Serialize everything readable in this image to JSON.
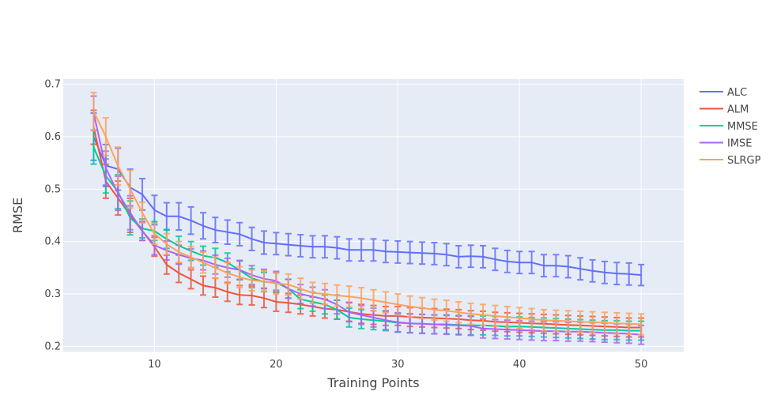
{
  "chart_data": {
    "type": "line",
    "xlabel": "Training Points",
    "ylabel": "RMSE",
    "x": [
      5,
      6,
      7,
      8,
      9,
      10,
      11,
      12,
      13,
      14,
      15,
      16,
      17,
      18,
      19,
      20,
      21,
      22,
      23,
      24,
      25,
      26,
      27,
      28,
      29,
      30,
      31,
      32,
      33,
      34,
      35,
      36,
      37,
      38,
      39,
      40,
      41,
      42,
      43,
      44,
      45,
      46,
      47,
      48,
      49,
      50
    ],
    "xlim": [
      2.5,
      53.5
    ],
    "ylim": [
      0.19,
      0.71
    ],
    "x_ticks": [
      10,
      20,
      30,
      40,
      50
    ],
    "y_ticks": [
      0.2,
      0.3,
      0.4,
      0.5,
      0.6,
      0.7
    ],
    "grid": true,
    "legend_position": "top-right",
    "error_bars": true,
    "series": [
      {
        "name": "ALC",
        "color": "#636efa",
        "values": [
          0.6,
          0.545,
          0.538,
          0.503,
          0.49,
          0.46,
          0.448,
          0.448,
          0.44,
          0.43,
          0.422,
          0.418,
          0.414,
          0.405,
          0.398,
          0.396,
          0.394,
          0.392,
          0.39,
          0.39,
          0.388,
          0.384,
          0.384,
          0.384,
          0.381,
          0.38,
          0.379,
          0.378,
          0.377,
          0.375,
          0.371,
          0.372,
          0.371,
          0.366,
          0.362,
          0.36,
          0.36,
          0.354,
          0.354,
          0.352,
          0.348,
          0.344,
          0.341,
          0.339,
          0.338,
          0.336
        ],
        "errors": [
          0.045,
          0.04,
          0.04,
          0.035,
          0.03,
          0.028,
          0.026,
          0.026,
          0.026,
          0.025,
          0.024,
          0.023,
          0.022,
          0.022,
          0.022,
          0.021,
          0.021,
          0.021,
          0.021,
          0.021,
          0.021,
          0.021,
          0.021,
          0.021,
          0.021,
          0.021,
          0.021,
          0.021,
          0.021,
          0.021,
          0.021,
          0.021,
          0.021,
          0.021,
          0.021,
          0.021,
          0.021,
          0.021,
          0.021,
          0.021,
          0.021,
          0.021,
          0.021,
          0.021,
          0.021,
          0.02
        ]
      },
      {
        "name": "ALM",
        "color": "#ef553b",
        "values": [
          0.618,
          0.515,
          0.483,
          0.45,
          0.42,
          0.39,
          0.356,
          0.34,
          0.328,
          0.316,
          0.312,
          0.304,
          0.298,
          0.297,
          0.292,
          0.285,
          0.283,
          0.28,
          0.276,
          0.272,
          0.27,
          0.266,
          0.262,
          0.26,
          0.258,
          0.258,
          0.256,
          0.255,
          0.254,
          0.253,
          0.252,
          0.25,
          0.249,
          0.247,
          0.246,
          0.245,
          0.244,
          0.243,
          0.242,
          0.241,
          0.24,
          0.239,
          0.238,
          0.237,
          0.236,
          0.236
        ]
      },
      {
        "name": "MMSE",
        "color": "#00cc96",
        "values": [
          0.58,
          0.525,
          0.495,
          0.445,
          0.425,
          0.42,
          0.405,
          0.392,
          0.382,
          0.373,
          0.369,
          0.36,
          0.345,
          0.33,
          0.323,
          0.322,
          0.31,
          0.29,
          0.285,
          0.28,
          0.27,
          0.255,
          0.252,
          0.25,
          0.248,
          0.245,
          0.244,
          0.243,
          0.242,
          0.242,
          0.241,
          0.24,
          0.24,
          0.239,
          0.238,
          0.238,
          0.237,
          0.236,
          0.235,
          0.234,
          0.233,
          0.232,
          0.231,
          0.231,
          0.23,
          0.23
        ]
      },
      {
        "name": "IMSE",
        "color": "#ab63fa",
        "values": [
          0.645,
          0.54,
          0.492,
          0.455,
          0.42,
          0.393,
          0.383,
          0.375,
          0.368,
          0.364,
          0.356,
          0.35,
          0.346,
          0.336,
          0.329,
          0.325,
          0.31,
          0.3,
          0.295,
          0.29,
          0.28,
          0.265,
          0.26,
          0.255,
          0.25,
          0.246,
          0.244,
          0.243,
          0.242,
          0.241,
          0.24,
          0.239,
          0.234,
          0.233,
          0.232,
          0.231,
          0.23,
          0.229,
          0.229,
          0.228,
          0.228,
          0.227,
          0.226,
          0.225,
          0.224,
          0.222
        ]
      },
      {
        "name": "SLRGP",
        "color": "#ffa15a",
        "values": [
          0.648,
          0.6,
          0.544,
          0.5,
          0.455,
          0.415,
          0.395,
          0.38,
          0.37,
          0.36,
          0.35,
          0.34,
          0.332,
          0.326,
          0.324,
          0.32,
          0.318,
          0.31,
          0.302,
          0.3,
          0.297,
          0.295,
          0.292,
          0.288,
          0.284,
          0.28,
          0.276,
          0.273,
          0.27,
          0.268,
          0.265,
          0.262,
          0.26,
          0.258,
          0.256,
          0.254,
          0.252,
          0.25,
          0.249,
          0.248,
          0.247,
          0.246,
          0.245,
          0.244,
          0.243,
          0.242
        ]
      }
    ]
  }
}
